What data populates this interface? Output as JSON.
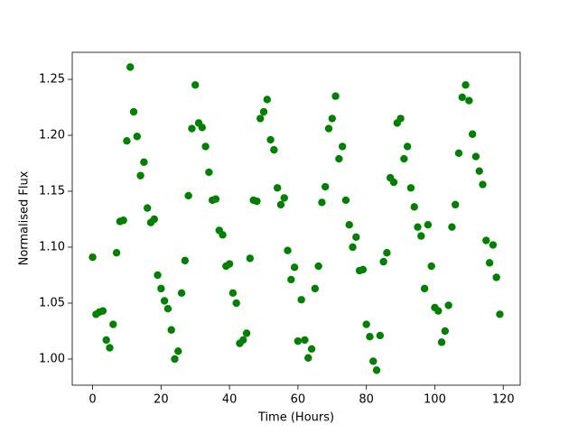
{
  "chart_data": {
    "type": "scatter",
    "x_label": "Time (Hours)",
    "y_label": "Normalised Flux",
    "x": [
      0,
      1,
      2,
      3,
      4,
      5,
      6,
      7,
      8,
      9,
      10,
      11,
      12,
      13,
      14,
      15,
      16,
      17,
      18,
      19,
      20,
      21,
      22,
      23,
      24,
      25,
      26,
      27,
      28,
      29,
      30,
      31,
      32,
      33,
      34,
      35,
      36,
      37,
      38,
      39,
      40,
      41,
      42,
      43,
      44,
      45,
      46,
      47,
      48,
      49,
      50,
      51,
      52,
      53,
      54,
      55,
      56,
      57,
      58,
      59,
      60,
      61,
      62,
      63,
      64,
      65,
      66,
      67,
      68,
      69,
      70,
      71,
      72,
      73,
      74,
      75,
      76,
      77,
      78,
      79,
      80,
      81,
      82,
      83,
      84,
      85,
      86,
      87,
      88,
      89,
      90,
      91,
      92,
      93,
      94,
      95,
      96,
      97,
      98,
      99,
      100,
      101,
      102,
      103,
      104,
      105,
      106,
      107,
      108,
      109,
      110,
      111,
      112,
      113,
      114,
      115,
      116,
      117,
      118,
      119
    ],
    "values": [
      1.091,
      1.04,
      1.042,
      1.043,
      1.017,
      1.01,
      1.031,
      1.095,
      1.123,
      1.124,
      1.195,
      1.261,
      1.221,
      1.199,
      1.164,
      1.176,
      1.135,
      1.122,
      1.125,
      1.075,
      1.063,
      1.052,
      1.045,
      1.026,
      1.0,
      1.007,
      1.059,
      1.088,
      1.146,
      1.206,
      1.245,
      1.211,
      1.207,
      1.19,
      1.167,
      1.142,
      1.143,
      1.115,
      1.111,
      1.083,
      1.085,
      1.059,
      1.05,
      1.014,
      1.017,
      1.023,
      1.09,
      1.142,
      1.141,
      1.215,
      1.221,
      1.232,
      1.196,
      1.187,
      1.153,
      1.138,
      1.144,
      1.097,
      1.071,
      1.082,
      1.016,
      1.053,
      1.017,
      1.001,
      1.009,
      1.063,
      1.083,
      1.14,
      1.154,
      1.206,
      1.215,
      1.235,
      1.179,
      1.19,
      1.142,
      1.12,
      1.1,
      1.109,
      1.079,
      1.08,
      1.031,
      1.02,
      0.998,
      0.99,
      1.021,
      1.087,
      1.095,
      1.162,
      1.158,
      1.211,
      1.215,
      1.179,
      1.19,
      1.153,
      1.136,
      1.118,
      1.11,
      1.063,
      1.12,
      1.083,
      1.046,
      1.043,
      1.015,
      1.025,
      1.048,
      1.118,
      1.138,
      1.184,
      1.234,
      1.245,
      1.231,
      1.201,
      1.181,
      1.168,
      1.156,
      1.106,
      1.086,
      1.102,
      1.073,
      1.04
    ],
    "color": "#008000",
    "xlim": [
      -5.95,
      124.95
    ],
    "xticks": [
      0,
      20,
      40,
      60,
      80,
      100,
      120
    ],
    "ylim": [
      0.9766,
      1.2742
    ],
    "yticks": [
      {
        "value": 1,
        "label": "1.00"
      },
      1.05,
      {
        "value": 1.1,
        "label": "1.10"
      },
      1.15,
      {
        "value": 1.2,
        "label": "1.20"
      },
      1.25
    ],
    "grid": false
  }
}
